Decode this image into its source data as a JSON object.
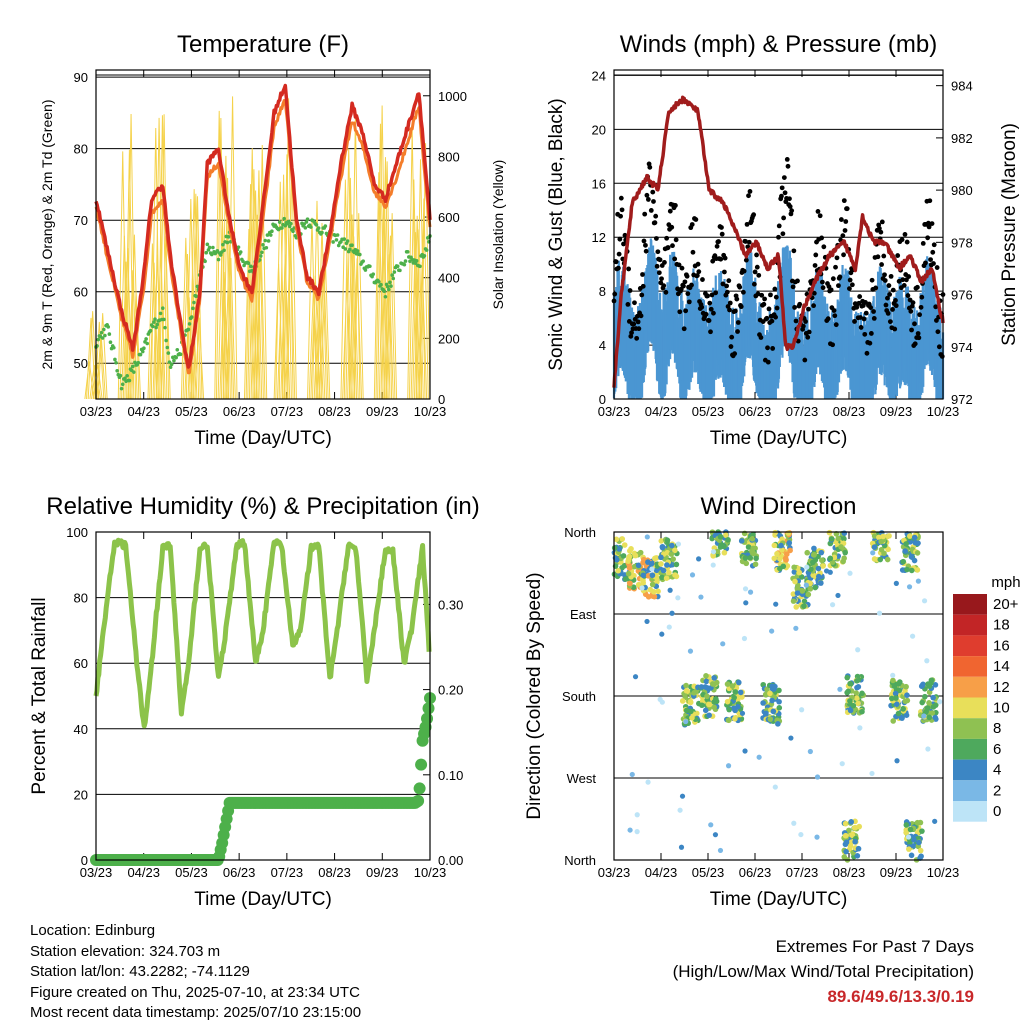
{
  "chart_data": [
    {
      "type": "line",
      "title": "Temperature (F)",
      "xlabel": "Time (Day/UTC)",
      "ylabel": "2m & 9m T (Red, Orange) & 2m Td (Green)",
      "y2label": "Solar Insolation (Yellow)",
      "x_ticks": [
        "03/23",
        "04/23",
        "05/23",
        "06/23",
        "07/23",
        "08/23",
        "09/23",
        "10/23"
      ],
      "ylim": [
        45,
        91
      ],
      "y_ticks": [
        50,
        60,
        70,
        80,
        90
      ],
      "y2lim": [
        0,
        1085
      ],
      "y2_ticks": [
        0,
        200,
        400,
        600,
        800,
        1000
      ],
      "series": [
        {
          "color": "#d42a20",
          "x": [
            0,
            0.3,
            0.7,
            1.0,
            1.3,
            1.5,
            1.8,
            2.0,
            2.3,
            2.5,
            2.8,
            3.0,
            3.3,
            3.6,
            3.9,
            4.2,
            4.5,
            4.8,
            5.1,
            5.4,
            5.7,
            6.0,
            6.3,
            6.6,
            6.9,
            7.2,
            7.5,
            7.8,
            8.1,
            8.4,
            8.7,
            8.9,
            9.0
          ],
          "values": [
            73,
            66,
            57,
            52,
            63,
            73,
            75,
            65,
            55,
            49,
            60,
            78,
            80,
            70,
            63,
            60,
            72,
            85,
            89,
            70,
            62,
            60,
            68,
            78,
            86,
            82,
            75,
            73,
            78,
            83,
            88,
            76,
            70
          ]
        },
        {
          "color": "#f47d2a",
          "x": [
            0,
            0.3,
            0.7,
            1.0,
            1.3,
            1.5,
            1.8,
            2.0,
            2.3,
            2.5,
            2.8,
            3.0,
            3.3,
            3.6,
            3.9,
            4.2,
            4.5,
            4.8,
            5.1,
            5.4,
            5.7,
            6.0,
            6.3,
            6.6,
            6.9,
            7.2,
            7.5,
            7.8,
            8.1,
            8.4,
            8.7,
            8.9,
            9.0
          ],
          "values": [
            72,
            65,
            56,
            51,
            61,
            71,
            73,
            64,
            54,
            48,
            59,
            76,
            78,
            69,
            62,
            59,
            70,
            83,
            87,
            69,
            61,
            59,
            67,
            76,
            84,
            80,
            74,
            72,
            76,
            81,
            86,
            74,
            69
          ]
        },
        {
          "color": "#4db04a",
          "x": [
            0,
            0.3,
            0.7,
            1.0,
            1.3,
            1.5,
            1.8,
            2.0,
            2.3,
            2.5,
            2.8,
            3.0,
            3.3,
            3.6,
            3.9,
            4.2,
            4.5,
            4.8,
            5.1,
            5.4,
            5.7,
            6.0,
            6.3,
            6.6,
            6.9,
            7.2,
            7.5,
            7.8,
            8.1,
            8.4,
            8.7,
            8.9,
            9.0
          ],
          "values": [
            53,
            55,
            47,
            49,
            52,
            55,
            57,
            50,
            52,
            55,
            62,
            66,
            65,
            68,
            65,
            63,
            66,
            69,
            70,
            68,
            70,
            69,
            68,
            67,
            66,
            64,
            62,
            60,
            63,
            65,
            64,
            66,
            68
          ]
        },
        {
          "color": "#f5d24a",
          "peaks": [
            [
              0,
              300
            ],
            [
              0.9,
              950
            ],
            [
              1.7,
              980
            ],
            [
              2.6,
              700
            ],
            [
              3.5,
              1000
            ],
            [
              4.3,
              1020
            ],
            [
              5.1,
              1030
            ],
            [
              6.0,
              920
            ],
            [
              6.9,
              1000
            ],
            [
              7.8,
              980
            ],
            [
              8.7,
              1030
            ]
          ]
        }
      ]
    },
    {
      "type": "scatter",
      "title": "Winds (mph) & Pressure (mb)",
      "xlabel": "Time (Day/UTC)",
      "ylabel": "Sonic Wind & Gust (Blue, Black)",
      "y2label": "Station Pressure (Maroon)",
      "x_ticks": [
        "03/23",
        "04/23",
        "05/23",
        "06/23",
        "07/23",
        "08/23",
        "09/23",
        "10/23"
      ],
      "ylim": [
        0,
        24.4
      ],
      "y_ticks": [
        0,
        4,
        8,
        12,
        16,
        20,
        24
      ],
      "y2lim": [
        972,
        984.6
      ],
      "y2_ticks": [
        972,
        974,
        976,
        978,
        980,
        982,
        984
      ],
      "series": [
        {
          "color": "#000000",
          "centers": [
            [
              0.2,
              12
            ],
            [
              1.0,
              17
            ],
            [
              1.6,
              12
            ],
            [
              2.2,
              10
            ],
            [
              2.9,
              10
            ],
            [
              3.7,
              13
            ],
            [
              4.7,
              17
            ],
            [
              5.6,
              10
            ],
            [
              6.3,
              12
            ],
            [
              7.3,
              10
            ],
            [
              7.9,
              9
            ],
            [
              8.6,
              12
            ]
          ]
        },
        {
          "color": "#4b96d2",
          "centers": [
            [
              0.2,
              7
            ],
            [
              1.0,
              10
            ],
            [
              1.6,
              8
            ],
            [
              2.2,
              6
            ],
            [
              2.9,
              6
            ],
            [
              3.7,
              8
            ],
            [
              4.7,
              10
            ],
            [
              5.6,
              6
            ],
            [
              6.3,
              7
            ],
            [
              7.3,
              6
            ],
            [
              7.9,
              5
            ],
            [
              8.6,
              7
            ]
          ]
        },
        {
          "color": "#a01c1c",
          "x": [
            0,
            0.2,
            0.5,
            0.9,
            1.2,
            1.5,
            1.9,
            2.3,
            2.6,
            3.0,
            3.3,
            3.6,
            3.9,
            4.2,
            4.5,
            4.7,
            4.9,
            5.2,
            5.5,
            5.9,
            6.3,
            6.6,
            6.8,
            7.1,
            7.4,
            7.8,
            8.1,
            8.4,
            8.7,
            8.9,
            9.0
          ],
          "values": [
            972.5,
            976,
            979.5,
            980.5,
            980,
            983,
            983.5,
            983,
            980,
            979.5,
            978.5,
            977.5,
            978,
            977,
            977.5,
            974,
            974,
            975.5,
            976.5,
            977.5,
            978,
            977,
            979,
            978,
            978,
            977,
            977.5,
            976.5,
            977,
            975.5,
            975
          ]
        }
      ]
    },
    {
      "type": "line",
      "title": "Relative Humidity (%) & Precipitation (in)",
      "xlabel": "Time (Day/UTC)",
      "ylabel": "Percent & Total Rainfall",
      "x_ticks": [
        "03/23",
        "04/23",
        "05/23",
        "06/23",
        "07/23",
        "08/23",
        "09/23",
        "10/23"
      ],
      "ylim": [
        0,
        100
      ],
      "y_ticks": [
        0,
        20,
        40,
        60,
        80,
        100
      ],
      "y2lim": [
        0,
        0.385
      ],
      "y2_ticks": [
        "0.00",
        "0.10",
        "0.20",
        "0.30"
      ],
      "series": [
        {
          "color": "#8cc34a",
          "x": [
            0,
            0.2,
            0.5,
            0.8,
            1.1,
            1.3,
            1.5,
            1.8,
            2.0,
            2.3,
            2.5,
            2.8,
            3.0,
            3.3,
            3.5,
            3.8,
            4.0,
            4.3,
            4.5,
            4.8,
            5.0,
            5.3,
            5.5,
            5.8,
            6.0,
            6.3,
            6.5,
            6.8,
            7.0,
            7.3,
            7.5,
            7.8,
            8.0,
            8.3,
            8.5,
            8.8,
            9.0
          ],
          "values": [
            50,
            70,
            97,
            96,
            60,
            40,
            60,
            95,
            96,
            45,
            60,
            95,
            96,
            55,
            70,
            96,
            97,
            60,
            70,
            97,
            96,
            65,
            70,
            95,
            96,
            55,
            70,
            96,
            95,
            55,
            70,
            95,
            94,
            60,
            70,
            95,
            60
          ]
        },
        {
          "color": "#4db04a",
          "x": [
            0,
            0.5,
            1.0,
            1.5,
            2.0,
            2.5,
            3.0,
            3.3,
            3.4,
            3.6,
            4.0,
            5.0,
            6.0,
            7.0,
            8.0,
            8.6,
            8.7,
            8.8,
            8.9,
            9.0
          ],
          "values": [
            0,
            0,
            0,
            0,
            0,
            0,
            0,
            0,
            0.02,
            0.067,
            0.067,
            0.067,
            0.067,
            0.067,
            0.067,
            0.067,
            0.07,
            0.14,
            0.16,
            0.19
          ]
        }
      ]
    },
    {
      "type": "scatter",
      "title": "Wind Direction",
      "xlabel": "Time (Day/UTC)",
      "ylabel": "Direction (Colored By Speed)",
      "x_ticks": [
        "03/23",
        "04/23",
        "05/23",
        "06/23",
        "07/23",
        "08/23",
        "09/23",
        "10/23"
      ],
      "y_ticks": [
        "North",
        "West",
        "South",
        "East",
        "North"
      ],
      "legend_title": "mph",
      "legend_labels": [
        "20+",
        "18",
        "16",
        "14",
        "12",
        "10",
        "8",
        "6",
        "4",
        "2",
        "0"
      ],
      "legend_colors": [
        "#98181c",
        "#c22526",
        "#df3d2e",
        "#f06530",
        "#f79f48",
        "#e8df5a",
        "#8fc152",
        "#4ea95d",
        "#3c86c4",
        "#7ab8e6",
        "#bde4f7"
      ],
      "clusters": [
        [
          0.1,
          330
        ],
        [
          0.6,
          320
        ],
        [
          1.0,
          310
        ],
        [
          1.5,
          330
        ],
        [
          2.1,
          170
        ],
        [
          2.6,
          180
        ],
        [
          2.9,
          355
        ],
        [
          3.3,
          175
        ],
        [
          3.7,
          345
        ],
        [
          4.3,
          170
        ],
        [
          4.6,
          340
        ],
        [
          5.1,
          300
        ],
        [
          5.5,
          320
        ],
        [
          6.1,
          345
        ],
        [
          6.6,
          180
        ],
        [
          7.3,
          350
        ],
        [
          7.8,
          175
        ],
        [
          8.1,
          340
        ],
        [
          8.6,
          175
        ],
        [
          6.5,
          20
        ],
        [
          8.2,
          20
        ]
      ]
    }
  ],
  "info": {
    "location": "Location: Edinburg",
    "elevation": "Station elevation: 324.703 m",
    "latlon": "Station lat/lon: 43.2282; -74.1129",
    "created": "Figure created on Thu, 2025-07-10, at 23:34 UTC",
    "timestamp": "Most recent data timestamp: 2025/07/10 23:15:00"
  },
  "extremes": {
    "title": "Extremes For Past 7 Days",
    "subtitle": "(High/Low/Max Wind/Total Precipitation)",
    "values": "89.6/49.6/13.3/0.19"
  }
}
